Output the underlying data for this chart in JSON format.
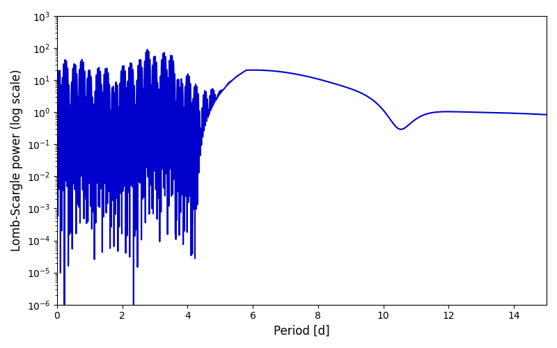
{
  "line_color": "#0000cc",
  "line_width": 1.5,
  "xlabel": "Period [d]",
  "ylabel": "Lomb-Scargle power (log scale)",
  "xlim": [
    0,
    15
  ],
  "ylim": [
    1e-06,
    1000.0
  ],
  "ylim_actual": [
    1e-06,
    200
  ],
  "yscale": "log",
  "background_color": "#ffffff",
  "figsize": [
    8.0,
    5.0
  ],
  "dpi": 100
}
